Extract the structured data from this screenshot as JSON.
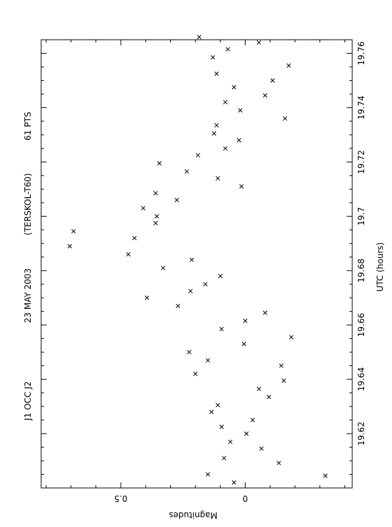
{
  "chart_data": {
    "type": "scatter",
    "orientation": "rotated-90",
    "header": {
      "target": "J1 OCC J2",
      "date": "23 MAY 2003",
      "observatory": "(TERSKOL-T60)",
      "points": "61 PTS"
    },
    "xlabel": "UTC (hours)",
    "ylabel": "Magnitudes",
    "xlim": [
      19.6,
      19.765
    ],
    "ylim": [
      -0.43,
      0.82
    ],
    "x_ticks": [
      "19.62",
      "19.64",
      "19.66",
      "19.68",
      "19.7",
      "19.72",
      "19.74",
      "19.76"
    ],
    "y_ticks": [
      "0",
      "0.5"
    ],
    "marker": "x",
    "points": [
      {
        "x": 19.602,
        "y": 0.045
      },
      {
        "x": 19.6045,
        "y": -0.322
      },
      {
        "x": 19.605,
        "y": 0.15
      },
      {
        "x": 19.6092,
        "y": -0.135
      },
      {
        "x": 19.611,
        "y": 0.085
      },
      {
        "x": 19.6145,
        "y": -0.065
      },
      {
        "x": 19.617,
        "y": 0.06
      },
      {
        "x": 19.62,
        "y": -0.005
      },
      {
        "x": 19.6225,
        "y": 0.095
      },
      {
        "x": 19.625,
        "y": -0.03
      },
      {
        "x": 19.628,
        "y": 0.135
      },
      {
        "x": 19.6305,
        "y": 0.11
      },
      {
        "x": 19.6335,
        "y": -0.095
      },
      {
        "x": 19.6365,
        "y": -0.055
      },
      {
        "x": 19.6395,
        "y": -0.155
      },
      {
        "x": 19.642,
        "y": 0.2
      },
      {
        "x": 19.645,
        "y": -0.145
      },
      {
        "x": 19.647,
        "y": 0.15
      },
      {
        "x": 19.65,
        "y": 0.225
      },
      {
        "x": 19.653,
        "y": 0.005
      },
      {
        "x": 19.6555,
        "y": -0.185
      },
      {
        "x": 19.6585,
        "y": 0.095
      },
      {
        "x": 19.6615,
        "y": 0.0
      },
      {
        "x": 19.6645,
        "y": -0.08
      },
      {
        "x": 19.667,
        "y": 0.27
      },
      {
        "x": 19.67,
        "y": 0.395
      },
      {
        "x": 19.6725,
        "y": 0.22
      },
      {
        "x": 19.675,
        "y": 0.16
      },
      {
        "x": 19.678,
        "y": 0.1
      },
      {
        "x": 19.681,
        "y": 0.33
      },
      {
        "x": 19.684,
        "y": 0.215
      },
      {
        "x": 19.686,
        "y": 0.47
      },
      {
        "x": 19.689,
        "y": 0.705
      },
      {
        "x": 19.692,
        "y": 0.445
      },
      {
        "x": 19.6945,
        "y": 0.69
      },
      {
        "x": 19.6975,
        "y": 0.36
      },
      {
        "x": 19.7,
        "y": 0.355
      },
      {
        "x": 19.703,
        "y": 0.41
      },
      {
        "x": 19.706,
        "y": 0.275
      },
      {
        "x": 19.7085,
        "y": 0.36
      },
      {
        "x": 19.711,
        "y": 0.015
      },
      {
        "x": 19.714,
        "y": 0.11
      },
      {
        "x": 19.7165,
        "y": 0.235
      },
      {
        "x": 19.7195,
        "y": 0.345
      },
      {
        "x": 19.7225,
        "y": 0.19
      },
      {
        "x": 19.725,
        "y": 0.08
      },
      {
        "x": 19.728,
        "y": 0.025
      },
      {
        "x": 19.7305,
        "y": 0.125
      },
      {
        "x": 19.7335,
        "y": 0.115
      },
      {
        "x": 19.736,
        "y": -0.16
      },
      {
        "x": 19.739,
        "y": 0.02
      },
      {
        "x": 19.742,
        "y": 0.08
      },
      {
        "x": 19.7445,
        "y": -0.08
      },
      {
        "x": 19.7475,
        "y": 0.045
      },
      {
        "x": 19.75,
        "y": -0.11
      },
      {
        "x": 19.7525,
        "y": 0.115
      },
      {
        "x": 19.7555,
        "y": -0.175
      },
      {
        "x": 19.7585,
        "y": 0.13
      },
      {
        "x": 19.7615,
        "y": 0.07
      },
      {
        "x": 19.764,
        "y": -0.055
      },
      {
        "x": 19.766,
        "y": 0.185
      }
    ]
  }
}
